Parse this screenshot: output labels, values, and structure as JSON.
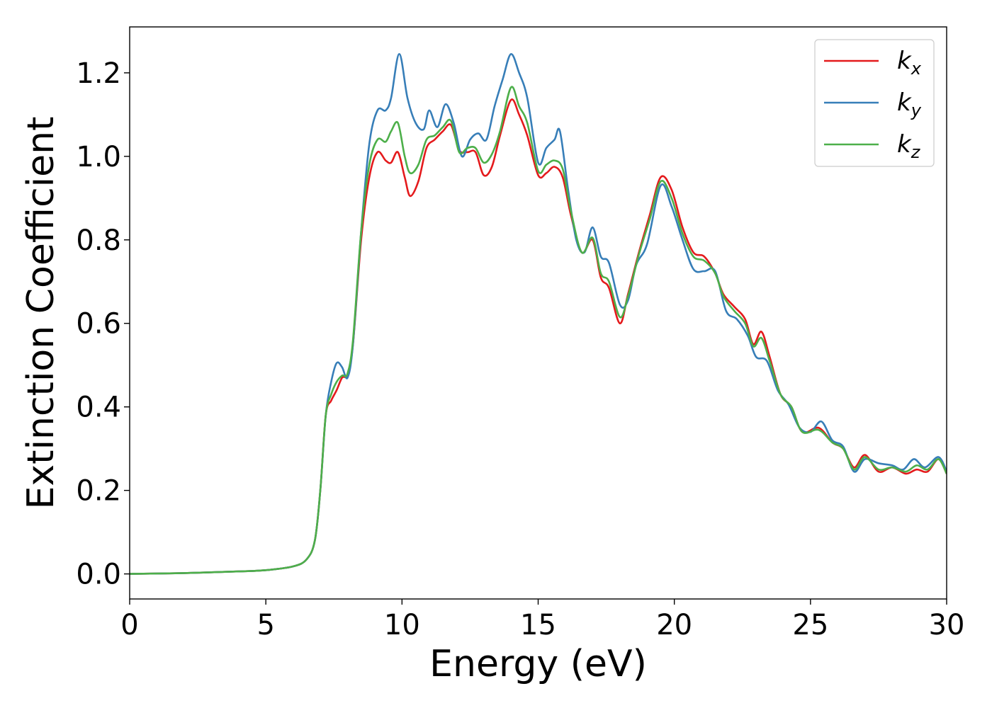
{
  "chart_data": {
    "type": "line",
    "title": "",
    "xlabel": "Energy (eV)",
    "ylabel": "Extinction Coefficient",
    "xlim": [
      0,
      30
    ],
    "ylim": [
      -0.06,
      1.31
    ],
    "xticks": [
      0,
      5,
      10,
      15,
      20,
      25,
      30
    ],
    "xtick_labels": [
      "0",
      "5",
      "10",
      "15",
      "20",
      "25",
      "30"
    ],
    "yticks": [
      0.0,
      0.2,
      0.4,
      0.6,
      0.8,
      1.0,
      1.2
    ],
    "ytick_labels": [
      "0.0",
      "0.2",
      "0.4",
      "0.6",
      "0.8",
      "1.0",
      "1.2"
    ],
    "grid": false,
    "legend_position": "top-right",
    "series": [
      {
        "name": "k_x",
        "label_main": "k",
        "label_sub": "x",
        "color": "#e41a1c",
        "points": [
          [
            0,
            0.0
          ],
          [
            2,
            0.002
          ],
          [
            4,
            0.006
          ],
          [
            5,
            0.009
          ],
          [
            6,
            0.018
          ],
          [
            6.5,
            0.035
          ],
          [
            6.8,
            0.08
          ],
          [
            7,
            0.2
          ],
          [
            7.2,
            0.38
          ],
          [
            7.4,
            0.415
          ],
          [
            7.6,
            0.44
          ],
          [
            7.8,
            0.47
          ],
          [
            8.0,
            0.478
          ],
          [
            8.2,
            0.55
          ],
          [
            8.5,
            0.8
          ],
          [
            8.8,
            0.95
          ],
          [
            9.1,
            1.01
          ],
          [
            9.4,
            0.99
          ],
          [
            9.6,
            0.985
          ],
          [
            9.85,
            1.01
          ],
          [
            10.1,
            0.95
          ],
          [
            10.3,
            0.905
          ],
          [
            10.6,
            0.94
          ],
          [
            10.9,
            1.02
          ],
          [
            11.2,
            1.04
          ],
          [
            11.5,
            1.06
          ],
          [
            11.8,
            1.075
          ],
          [
            12.1,
            1.015
          ],
          [
            12.4,
            1.01
          ],
          [
            12.7,
            1.01
          ],
          [
            13.0,
            0.955
          ],
          [
            13.3,
            0.975
          ],
          [
            13.6,
            1.05
          ],
          [
            14.0,
            1.135
          ],
          [
            14.3,
            1.1
          ],
          [
            14.6,
            1.05
          ],
          [
            15.0,
            0.955
          ],
          [
            15.3,
            0.96
          ],
          [
            15.6,
            0.975
          ],
          [
            15.9,
            0.95
          ],
          [
            16.2,
            0.86
          ],
          [
            16.6,
            0.77
          ],
          [
            17.0,
            0.8
          ],
          [
            17.3,
            0.71
          ],
          [
            17.6,
            0.685
          ],
          [
            18.0,
            0.6
          ],
          [
            18.3,
            0.67
          ],
          [
            18.7,
            0.77
          ],
          [
            19.1,
            0.86
          ],
          [
            19.5,
            0.95
          ],
          [
            19.9,
            0.92
          ],
          [
            20.3,
            0.83
          ],
          [
            20.7,
            0.77
          ],
          [
            21.1,
            0.76
          ],
          [
            21.5,
            0.72
          ],
          [
            21.8,
            0.67
          ],
          [
            22.2,
            0.64
          ],
          [
            22.6,
            0.61
          ],
          [
            22.9,
            0.55
          ],
          [
            23.2,
            0.58
          ],
          [
            23.5,
            0.52
          ],
          [
            23.9,
            0.43
          ],
          [
            24.3,
            0.4
          ],
          [
            24.7,
            0.34
          ],
          [
            25.3,
            0.35
          ],
          [
            25.8,
            0.315
          ],
          [
            26.2,
            0.3
          ],
          [
            26.6,
            0.255
          ],
          [
            27.0,
            0.285
          ],
          [
            27.5,
            0.245
          ],
          [
            28.0,
            0.255
          ],
          [
            28.5,
            0.24
          ],
          [
            28.9,
            0.25
          ],
          [
            29.3,
            0.245
          ],
          [
            29.7,
            0.275
          ],
          [
            30.0,
            0.24
          ]
        ]
      },
      {
        "name": "k_y",
        "label_main": "k",
        "label_sub": "y",
        "color": "#377eb8",
        "points": [
          [
            0,
            0.0
          ],
          [
            2,
            0.002
          ],
          [
            4,
            0.006
          ],
          [
            5,
            0.009
          ],
          [
            6,
            0.018
          ],
          [
            6.5,
            0.035
          ],
          [
            6.8,
            0.08
          ],
          [
            7,
            0.2
          ],
          [
            7.2,
            0.38
          ],
          [
            7.4,
            0.46
          ],
          [
            7.6,
            0.505
          ],
          [
            7.8,
            0.495
          ],
          [
            8.0,
            0.47
          ],
          [
            8.2,
            0.55
          ],
          [
            8.5,
            0.82
          ],
          [
            8.8,
            1.03
          ],
          [
            9.1,
            1.11
          ],
          [
            9.4,
            1.11
          ],
          [
            9.6,
            1.14
          ],
          [
            9.9,
            1.245
          ],
          [
            10.2,
            1.14
          ],
          [
            10.5,
            1.08
          ],
          [
            10.8,
            1.065
          ],
          [
            11.0,
            1.11
          ],
          [
            11.3,
            1.07
          ],
          [
            11.6,
            1.125
          ],
          [
            11.9,
            1.08
          ],
          [
            12.2,
            1.0
          ],
          [
            12.5,
            1.04
          ],
          [
            12.8,
            1.055
          ],
          [
            13.1,
            1.04
          ],
          [
            13.4,
            1.12
          ],
          [
            13.7,
            1.185
          ],
          [
            14.0,
            1.245
          ],
          [
            14.3,
            1.2
          ],
          [
            14.6,
            1.14
          ],
          [
            15.0,
            0.985
          ],
          [
            15.3,
            1.02
          ],
          [
            15.6,
            1.04
          ],
          [
            15.8,
            1.06
          ],
          [
            16.1,
            0.92
          ],
          [
            16.4,
            0.8
          ],
          [
            16.7,
            0.77
          ],
          [
            17.0,
            0.83
          ],
          [
            17.3,
            0.76
          ],
          [
            17.6,
            0.745
          ],
          [
            18.0,
            0.645
          ],
          [
            18.3,
            0.655
          ],
          [
            18.6,
            0.74
          ],
          [
            19.0,
            0.79
          ],
          [
            19.5,
            0.93
          ],
          [
            19.9,
            0.88
          ],
          [
            20.3,
            0.8
          ],
          [
            20.7,
            0.73
          ],
          [
            21.1,
            0.725
          ],
          [
            21.5,
            0.725
          ],
          [
            21.9,
            0.63
          ],
          [
            22.3,
            0.61
          ],
          [
            22.7,
            0.57
          ],
          [
            23.0,
            0.52
          ],
          [
            23.4,
            0.51
          ],
          [
            23.8,
            0.44
          ],
          [
            24.2,
            0.405
          ],
          [
            24.6,
            0.35
          ],
          [
            25.0,
            0.34
          ],
          [
            25.4,
            0.365
          ],
          [
            25.8,
            0.32
          ],
          [
            26.2,
            0.305
          ],
          [
            26.6,
            0.245
          ],
          [
            27.0,
            0.275
          ],
          [
            27.5,
            0.265
          ],
          [
            28.0,
            0.26
          ],
          [
            28.4,
            0.25
          ],
          [
            28.8,
            0.275
          ],
          [
            29.2,
            0.255
          ],
          [
            29.7,
            0.28
          ],
          [
            30.0,
            0.245
          ]
        ]
      },
      {
        "name": "k_z",
        "label_main": "k",
        "label_sub": "z",
        "color": "#4daf4a",
        "points": [
          [
            0,
            0.0
          ],
          [
            2,
            0.002
          ],
          [
            4,
            0.006
          ],
          [
            5,
            0.009
          ],
          [
            6,
            0.018
          ],
          [
            6.5,
            0.035
          ],
          [
            6.8,
            0.08
          ],
          [
            7,
            0.2
          ],
          [
            7.2,
            0.38
          ],
          [
            7.4,
            0.43
          ],
          [
            7.6,
            0.46
          ],
          [
            7.8,
            0.475
          ],
          [
            8.0,
            0.48
          ],
          [
            8.2,
            0.56
          ],
          [
            8.5,
            0.82
          ],
          [
            8.8,
            0.98
          ],
          [
            9.1,
            1.04
          ],
          [
            9.4,
            1.035
          ],
          [
            9.6,
            1.06
          ],
          [
            9.85,
            1.08
          ],
          [
            10.1,
            1.0
          ],
          [
            10.3,
            0.96
          ],
          [
            10.6,
            0.98
          ],
          [
            10.9,
            1.04
          ],
          [
            11.2,
            1.05
          ],
          [
            11.5,
            1.07
          ],
          [
            11.8,
            1.085
          ],
          [
            12.1,
            1.01
          ],
          [
            12.4,
            1.02
          ],
          [
            12.7,
            1.02
          ],
          [
            13.0,
            0.985
          ],
          [
            13.3,
            1.005
          ],
          [
            13.6,
            1.06
          ],
          [
            14.0,
            1.165
          ],
          [
            14.3,
            1.12
          ],
          [
            14.6,
            1.08
          ],
          [
            15.0,
            0.965
          ],
          [
            15.3,
            0.98
          ],
          [
            15.6,
            0.99
          ],
          [
            15.9,
            0.97
          ],
          [
            16.2,
            0.87
          ],
          [
            16.6,
            0.77
          ],
          [
            17.0,
            0.805
          ],
          [
            17.3,
            0.72
          ],
          [
            17.6,
            0.7
          ],
          [
            18.0,
            0.615
          ],
          [
            18.3,
            0.665
          ],
          [
            18.7,
            0.765
          ],
          [
            19.1,
            0.85
          ],
          [
            19.5,
            0.94
          ],
          [
            19.9,
            0.9
          ],
          [
            20.3,
            0.815
          ],
          [
            20.7,
            0.76
          ],
          [
            21.1,
            0.75
          ],
          [
            21.5,
            0.72
          ],
          [
            21.8,
            0.665
          ],
          [
            22.2,
            0.63
          ],
          [
            22.6,
            0.6
          ],
          [
            22.9,
            0.545
          ],
          [
            23.2,
            0.565
          ],
          [
            23.5,
            0.51
          ],
          [
            23.9,
            0.43
          ],
          [
            24.3,
            0.4
          ],
          [
            24.7,
            0.34
          ],
          [
            25.3,
            0.345
          ],
          [
            25.8,
            0.315
          ],
          [
            26.2,
            0.3
          ],
          [
            26.6,
            0.25
          ],
          [
            27.0,
            0.28
          ],
          [
            27.5,
            0.25
          ],
          [
            28.0,
            0.255
          ],
          [
            28.5,
            0.245
          ],
          [
            28.9,
            0.26
          ],
          [
            29.3,
            0.25
          ],
          [
            29.7,
            0.275
          ],
          [
            30.0,
            0.24
          ]
        ]
      }
    ]
  }
}
